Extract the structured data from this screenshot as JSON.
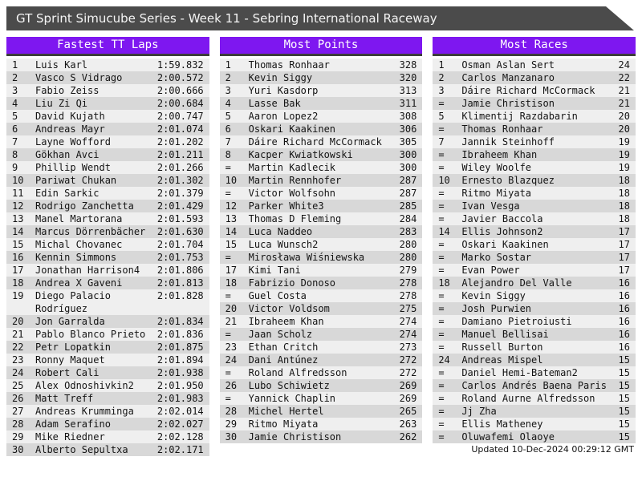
{
  "title": "GT Sprint Simucube Series - Week 11 - Sebring International Raceway",
  "footer": {
    "updated": "Updated 10-Dec-2024 00:29:12 GMT"
  },
  "colors": {
    "accent_purple": "#7e17f0",
    "titlebar_gray": "#4b4b4b",
    "row_odd": "#efefef",
    "row_even": "#d8d8d8",
    "header_shadow": "#3d3d3d"
  },
  "boards": [
    {
      "title": "Fastest TT Laps",
      "rows": [
        {
          "rank": "1",
          "name": "Luis Karl",
          "value": "1:59.832"
        },
        {
          "rank": "2",
          "name": "Vasco S Vidrago",
          "value": "2:00.572"
        },
        {
          "rank": "3",
          "name": "Fabio Zeiss",
          "value": "2:00.666"
        },
        {
          "rank": "4",
          "name": "Liu Zi Qi",
          "value": "2:00.684"
        },
        {
          "rank": "5",
          "name": "David Kujath",
          "value": "2:00.747"
        },
        {
          "rank": "6",
          "name": "Andreas Mayr",
          "value": "2:01.074"
        },
        {
          "rank": "7",
          "name": "Layne Wofford",
          "value": "2:01.202"
        },
        {
          "rank": "8",
          "name": "Gökhan Avci",
          "value": "2:01.211"
        },
        {
          "rank": "9",
          "name": "Phillip Wendt",
          "value": "2:01.266"
        },
        {
          "rank": "10",
          "name": "Pariwat Chukan",
          "value": "2:01.302"
        },
        {
          "rank": "11",
          "name": "Edin Sarkic",
          "value": "2:01.379"
        },
        {
          "rank": "12",
          "name": "Rodrigo Zanchetta",
          "value": "2:01.429"
        },
        {
          "rank": "13",
          "name": "Manel Martorana",
          "value": "2:01.593"
        },
        {
          "rank": "14",
          "name": "Marcus Dörrenbächer",
          "value": "2:01.630"
        },
        {
          "rank": "15",
          "name": "Michal Chovanec",
          "value": "2:01.704"
        },
        {
          "rank": "16",
          "name": "Kennin Simmons",
          "value": "2:01.753"
        },
        {
          "rank": "17",
          "name": "Jonathan Harrison4",
          "value": "2:01.806"
        },
        {
          "rank": "18",
          "name": "Andrea X Gaveni",
          "value": "2:01.813"
        },
        {
          "rank": "19",
          "name": "Diego Palacio Rodríguez",
          "value": "2:01.828"
        },
        {
          "rank": "20",
          "name": "Jon Garralda",
          "value": "2:01.834"
        },
        {
          "rank": "21",
          "name": "Pablo Blanco Prieto",
          "value": "2:01.836"
        },
        {
          "rank": "22",
          "name": "Petr Lopatkin",
          "value": "2:01.875"
        },
        {
          "rank": "23",
          "name": "Ronny Maquet",
          "value": "2:01.894"
        },
        {
          "rank": "24",
          "name": "Robert Cali",
          "value": "2:01.938"
        },
        {
          "rank": "25",
          "name": "Alex Odnoshivkin2",
          "value": "2:01.950"
        },
        {
          "rank": "26",
          "name": "Matt Treff",
          "value": "2:01.983"
        },
        {
          "rank": "27",
          "name": "Andreas Krumminga",
          "value": "2:02.014"
        },
        {
          "rank": "28",
          "name": "Adam Serafino",
          "value": "2:02.027"
        },
        {
          "rank": "29",
          "name": "Mike Riedner",
          "value": "2:02.128"
        },
        {
          "rank": "30",
          "name": "Alberto Sepultxa",
          "value": "2:02.171"
        }
      ]
    },
    {
      "title": "Most Points",
      "rows": [
        {
          "rank": "1",
          "name": "Thomas Ronhaar",
          "value": "328"
        },
        {
          "rank": "2",
          "name": "Kevin Siggy",
          "value": "320"
        },
        {
          "rank": "3",
          "name": "Yuri Kasdorp",
          "value": "313"
        },
        {
          "rank": "4",
          "name": "Lasse Bak",
          "value": "311"
        },
        {
          "rank": "5",
          "name": "Aaron Lopez2",
          "value": "308"
        },
        {
          "rank": "6",
          "name": "Oskari Kaakinen",
          "value": "306"
        },
        {
          "rank": "7",
          "name": "Dáire Richard McCormack",
          "value": "305"
        },
        {
          "rank": "8",
          "name": "Kacper Kwiatkowski",
          "value": "300"
        },
        {
          "rank": "=",
          "name": "Martin Kadlecik",
          "value": "300"
        },
        {
          "rank": "10",
          "name": "Martin Rennhofer",
          "value": "287"
        },
        {
          "rank": "=",
          "name": "Victor Wolfsohn",
          "value": "287"
        },
        {
          "rank": "12",
          "name": "Parker White3",
          "value": "285"
        },
        {
          "rank": "13",
          "name": "Thomas D Fleming",
          "value": "284"
        },
        {
          "rank": "14",
          "name": "Luca Naddeo",
          "value": "283"
        },
        {
          "rank": "15",
          "name": "Luca Wunsch2",
          "value": "280"
        },
        {
          "rank": "=",
          "name": "Mirosława Wiśniewska",
          "value": "280"
        },
        {
          "rank": "17",
          "name": "Kimi Tani",
          "value": "279"
        },
        {
          "rank": "18",
          "name": "Fabrizio Donoso",
          "value": "278"
        },
        {
          "rank": "=",
          "name": "Guel Costa",
          "value": "278"
        },
        {
          "rank": "20",
          "name": "Victor Voldsom",
          "value": "275"
        },
        {
          "rank": "21",
          "name": "Ibraheem Khan",
          "value": "274"
        },
        {
          "rank": "=",
          "name": "Jaan Scholz",
          "value": "274"
        },
        {
          "rank": "23",
          "name": "Ethan Critch",
          "value": "273"
        },
        {
          "rank": "24",
          "name": "Dani Antúnez",
          "value": "272"
        },
        {
          "rank": "=",
          "name": "Roland Alfredsson",
          "value": "272"
        },
        {
          "rank": "26",
          "name": "Lubo Schiwietz",
          "value": "269"
        },
        {
          "rank": "=",
          "name": "Yannick Chaplin",
          "value": "269"
        },
        {
          "rank": "28",
          "name": "Michel Hertel",
          "value": "265"
        },
        {
          "rank": "29",
          "name": "Ritmo Miyata",
          "value": "263"
        },
        {
          "rank": "30",
          "name": "Jamie Christison",
          "value": "262"
        }
      ]
    },
    {
      "title": "Most Races",
      "rows": [
        {
          "rank": "1",
          "name": "Osman Aslan Sert",
          "value": "24"
        },
        {
          "rank": "2",
          "name": "Carlos Manzanaro",
          "value": "22"
        },
        {
          "rank": "3",
          "name": "Dáire Richard McCormack",
          "value": "21"
        },
        {
          "rank": "=",
          "name": "Jamie Christison",
          "value": "21"
        },
        {
          "rank": "5",
          "name": "Klimentij Razdabarin",
          "value": "20"
        },
        {
          "rank": "=",
          "name": "Thomas Ronhaar",
          "value": "20"
        },
        {
          "rank": "7",
          "name": "Jannik Steinhoff",
          "value": "19"
        },
        {
          "rank": "=",
          "name": "Ibraheem Khan",
          "value": "19"
        },
        {
          "rank": "=",
          "name": "Wiley Woolfe",
          "value": "19"
        },
        {
          "rank": "10",
          "name": "Ernesto Blazquez",
          "value": "18"
        },
        {
          "rank": "=",
          "name": "Ritmo Miyata",
          "value": "18"
        },
        {
          "rank": "=",
          "name": "Ivan Vesga",
          "value": "18"
        },
        {
          "rank": "=",
          "name": "Javier Baccola",
          "value": "18"
        },
        {
          "rank": "14",
          "name": "Ellis Johnson2",
          "value": "17"
        },
        {
          "rank": "=",
          "name": "Oskari Kaakinen",
          "value": "17"
        },
        {
          "rank": "=",
          "name": "Marko Sostar",
          "value": "17"
        },
        {
          "rank": "=",
          "name": "Evan Power",
          "value": "17"
        },
        {
          "rank": "18",
          "name": "Alejandro Del Valle",
          "value": "16"
        },
        {
          "rank": "=",
          "name": "Kevin Siggy",
          "value": "16"
        },
        {
          "rank": "=",
          "name": "Josh Purwien",
          "value": "16"
        },
        {
          "rank": "=",
          "name": "Damiano Pietroiusti",
          "value": "16"
        },
        {
          "rank": "=",
          "name": "Manuel Bellisai",
          "value": "16"
        },
        {
          "rank": "=",
          "name": "Russell Burton",
          "value": "16"
        },
        {
          "rank": "24",
          "name": "Andreas Mispel",
          "value": "15"
        },
        {
          "rank": "=",
          "name": "Daniel Hemi-Bateman2",
          "value": "15"
        },
        {
          "rank": "=",
          "name": "Carlos Andrés Baena Paris",
          "value": "15"
        },
        {
          "rank": "=",
          "name": "Roland Aurne Alfredsson",
          "value": "15"
        },
        {
          "rank": "=",
          "name": "Jj Zha",
          "value": "15"
        },
        {
          "rank": "=",
          "name": "Ellis Matheney",
          "value": "15"
        },
        {
          "rank": "=",
          "name": "Oluwafemi Olaoye",
          "value": "15"
        }
      ]
    }
  ]
}
